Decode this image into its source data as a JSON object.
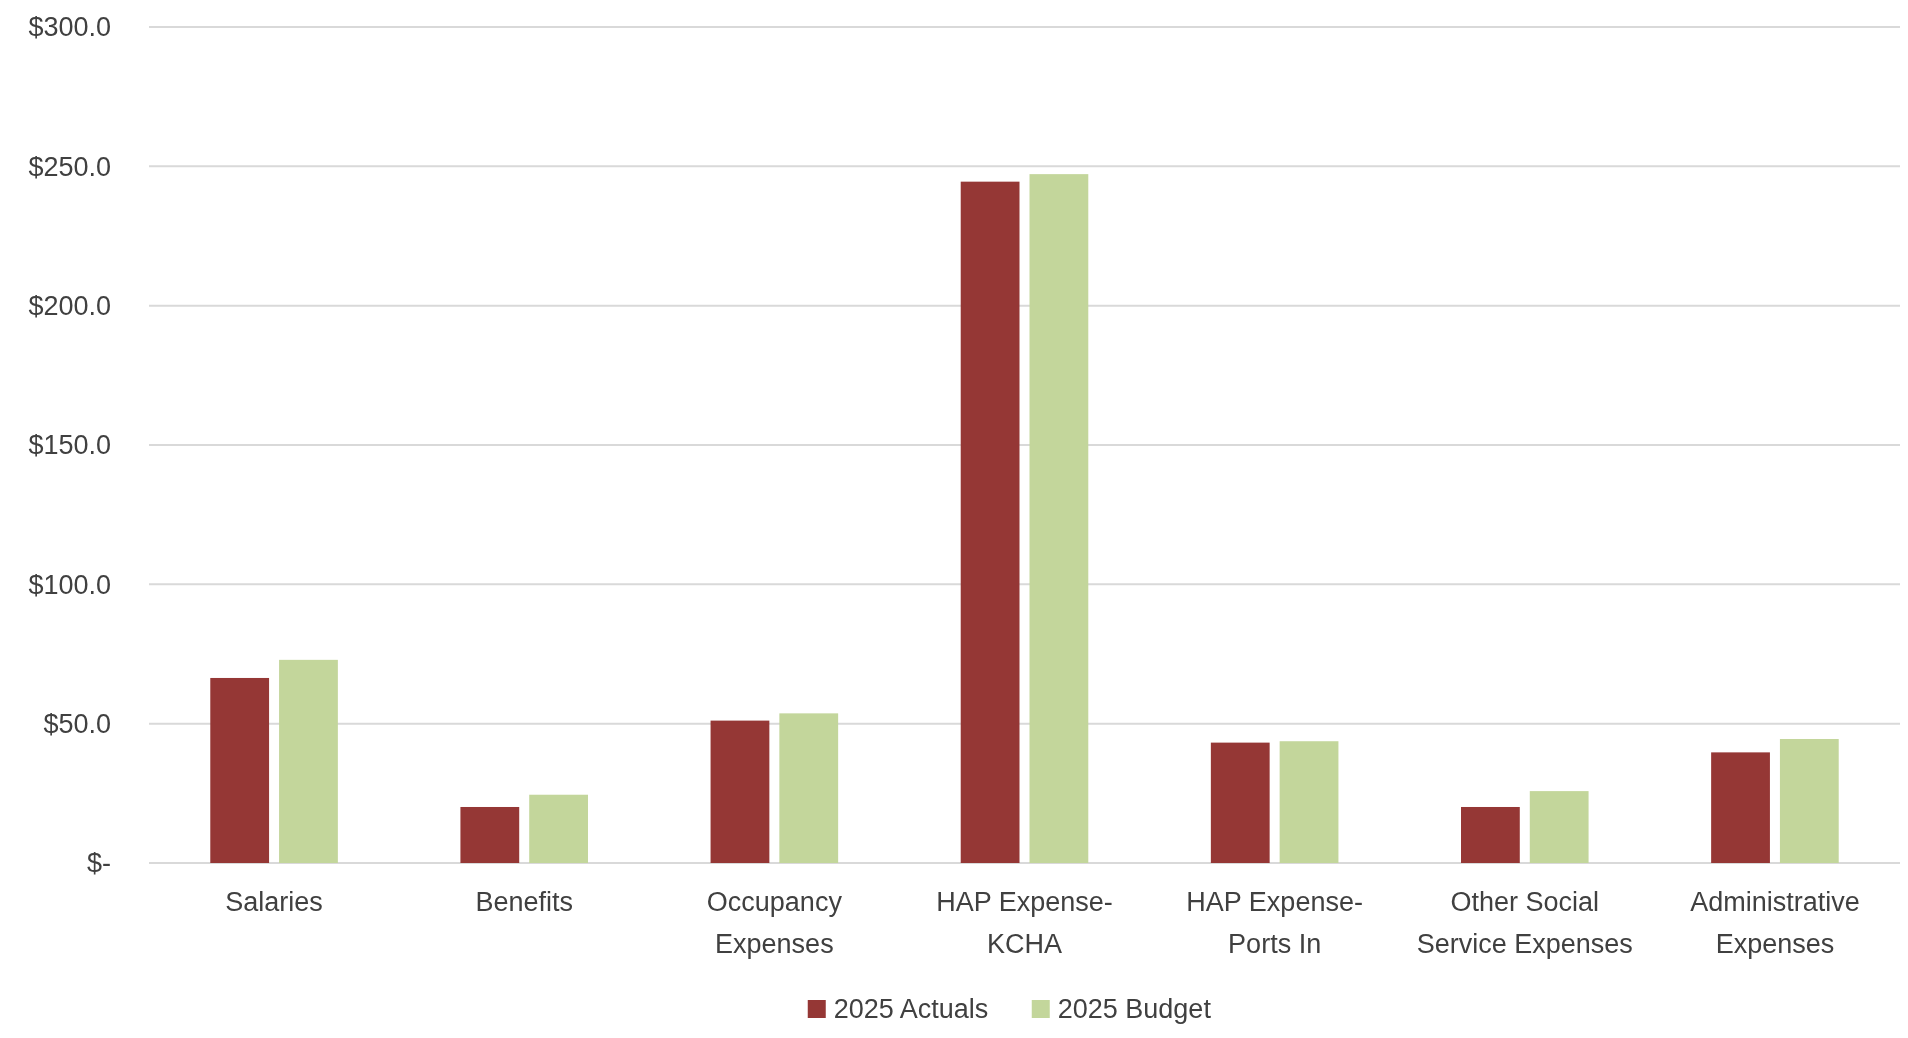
{
  "chart_data": {
    "type": "bar",
    "categories": [
      "Salaries",
      "Benefits",
      "Occupancy Expenses",
      "HAP Expense-KCHA",
      "HAP Expense-Ports In",
      "Other Social Service Expenses",
      "Administrative Expenses"
    ],
    "series": [
      {
        "name": "2025 Actuals",
        "color": "#953735",
        "values": [
          66.4,
          20.1,
          51.1,
          244.5,
          43.2,
          20.1,
          39.7
        ]
      },
      {
        "name": "2025 Budget",
        "color": "#c3d69b",
        "values": [
          72.9,
          24.5,
          53.7,
          247.2,
          43.7,
          25.8,
          44.5
        ]
      }
    ],
    "ylim": [
      0,
      300
    ],
    "yticks": [
      {
        "value": 0,
        "label": "$-"
      },
      {
        "value": 50,
        "label": "$50.0"
      },
      {
        "value": 100,
        "label": "$100.0"
      },
      {
        "value": 150,
        "label": "$150.0"
      },
      {
        "value": 200,
        "label": "$200.0"
      },
      {
        "value": 250,
        "label": "$250.0"
      },
      {
        "value": 300,
        "label": "$300.0"
      }
    ],
    "grid": "y",
    "legend": "bottom"
  }
}
